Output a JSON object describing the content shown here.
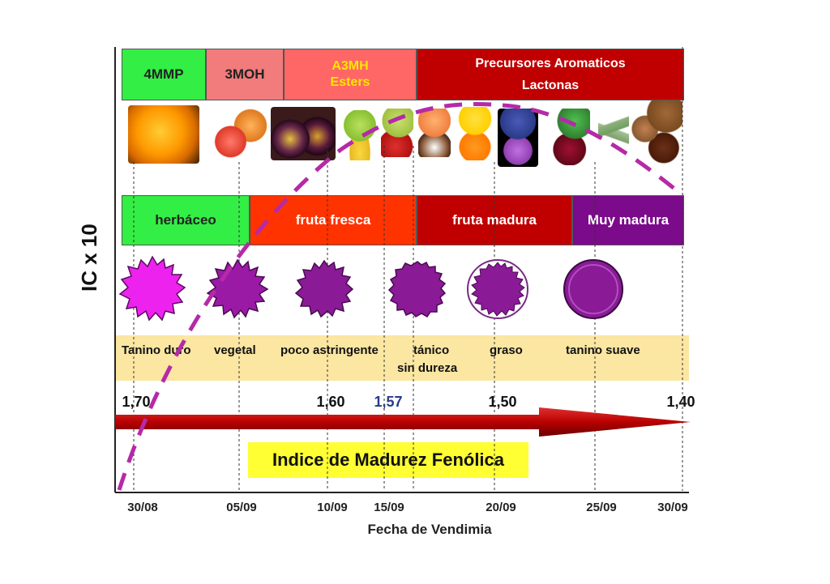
{
  "y_axis_label": "IC x 10",
  "x_axis_label": "Fecha de Vendimia",
  "index_banner": "Indice de Madurez Fenólica",
  "dates": [
    "30/08",
    "05/09",
    "10/09",
    "15/09",
    "20/09",
    "25/09",
    "30/09"
  ],
  "ic_values": [
    "1,70",
    "1,60",
    "1,57",
    "1,50",
    "1,40"
  ],
  "aroma_bands": [
    {
      "label": "4MMP",
      "color": "#33ee44",
      "text_color": "#222222"
    },
    {
      "label": "3MOH",
      "color": "#f27b7b",
      "text_color": "#222222"
    },
    {
      "label_line1": "A3MH",
      "label_line2": "Esters",
      "color": "#ff6666",
      "text_color": "#ffe600"
    },
    {
      "label_line1": "Precursores Aromaticos",
      "label_line2": "Lactonas",
      "color": "#c00000",
      "text_color": "#ffffff"
    }
  ],
  "maturity_bands": [
    {
      "label": "herbáceo",
      "color": "#33ee44",
      "text_color": "#222222"
    },
    {
      "label": "fruta fresca",
      "color": "#ff3300",
      "text_color": "#ffffff"
    },
    {
      "label": "fruta madura",
      "color": "#c00000",
      "text_color": "#ffffff"
    },
    {
      "label": "Muy madura",
      "color": "#7b0b8a",
      "text_color": "#ffffff"
    }
  ],
  "tannin_labels": [
    "Tanino duro",
    "vegetal",
    "poco astringente",
    "tánico",
    "sin dureza",
    "graso",
    "tanino suave"
  ],
  "colors": {
    "tannin_strip": "#fbe6a2",
    "arrow": "#b80000",
    "banner_bg": "#ffff33",
    "curve": "#b52aa6",
    "seed": "#8a1a96",
    "seed_light": "#ee22ee"
  },
  "icons": [
    "orange-fruit-icon",
    "grapefruit-peach-icon",
    "passion-fruit-icon",
    "apple-banana-icon",
    "pear-strawberry-icon",
    "peach-coconut-icon",
    "citrus-icon",
    "blueberry-violet-icon",
    "berries-mint-icon",
    "herbs-icon",
    "nuts-spices-icon"
  ]
}
